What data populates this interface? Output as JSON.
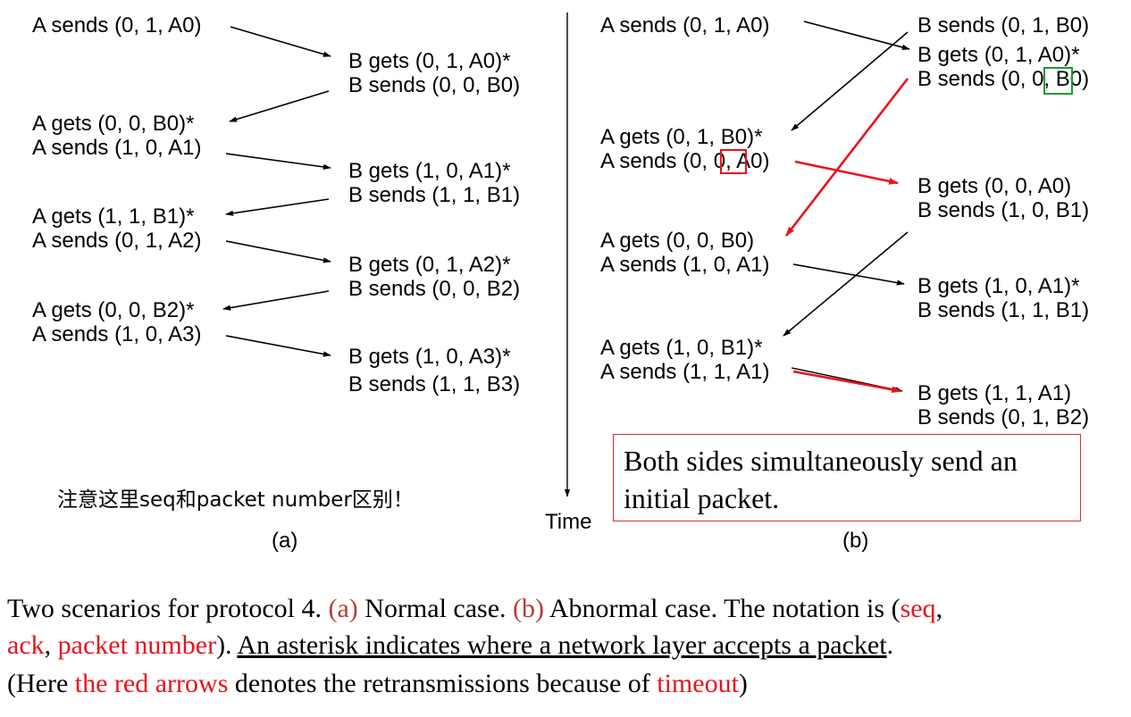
{
  "colors": {
    "black_arrow": "#000000",
    "red_arrow": "#e8141c",
    "note_border": "#d9302c",
    "box_red": "#e8141c",
    "box_green": "#1a9a3a",
    "caption_label": "#b83b3b"
  },
  "scenario_a": {
    "caption": "(a)",
    "a_labels": [
      "A sends (0, 1, A0)",
      "A gets (0, 0, B0)*",
      "A sends (1, 0, A1)",
      "A gets (1, 1, B1)*",
      "A sends (0, 1, A2)",
      "A gets (0, 0, B2)*",
      "A sends (1, 0, A3)"
    ],
    "b_labels": [
      "B gets (0, 1, A0)*",
      "B sends (0, 0, B0)",
      "B gets (1, 0, A1)*",
      "B sends (1, 1, B1)",
      "B gets (0, 1, A2)*",
      "B sends (0, 0, B2)",
      "B gets (1, 0, A3)*",
      "B sends (1, 1, B3)"
    ],
    "note": "注意这里seq和packet number区别！"
  },
  "timeline": {
    "label": "Time"
  },
  "scenario_b": {
    "caption": "(b)",
    "a_labels": [
      "A sends (0, 1, A0)",
      "A gets (0, 1, B0)*",
      "A sends (0, 0, A0)",
      "A gets (0, 0, B0)",
      "A sends (1, 0, A1)",
      "A gets (1, 0, B1)*",
      "A sends (1, 1, A1)"
    ],
    "b_labels": [
      "B sends (0, 1, B0)",
      "B gets (0, 1, A0)*",
      "B sends (0, 0, B0)",
      "B gets (0, 0, A0)",
      "B sends (1, 0, B1)",
      "B gets (1, 0, A1)*",
      "B sends (1, 1, B1)",
      "B gets (1, 1, A1)",
      "B sends (0, 1, B2)"
    ],
    "note": "Both sides simultaneously send an initial packet."
  },
  "bottom_text": {
    "line1": {
      "part1": "Two scenarios for protocol 4. ",
      "label_a": "(a)",
      "part2": " Normal case. ",
      "label_b": "(b)",
      "part3": " Abnormal case.  The notation is (",
      "seq": "seq",
      "sep": ","
    },
    "line2": {
      "ack": "ack",
      "sep1": ", ",
      "packet_number": "packet number",
      "part1": ").  ",
      "underlined": "An asterisk indicates where a network layer accepts a packet",
      "end": "."
    },
    "line3": {
      "part1": "(Here ",
      "red_arrows": "the red arrows",
      "part2": " denotes the retransmissions because of ",
      "timeout": "timeout",
      "part3": ")"
    }
  }
}
